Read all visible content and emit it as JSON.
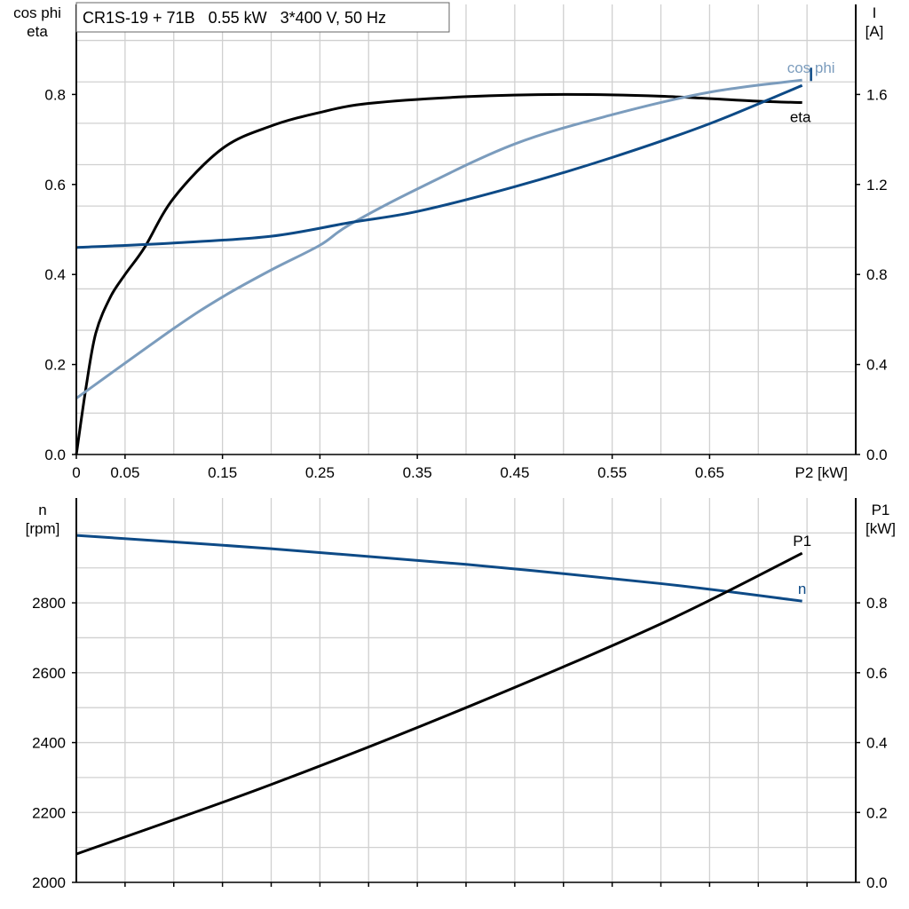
{
  "chart_data": [
    {
      "type": "line",
      "title": "CR1S-19 + 71B   0.55 kW   3*400 V, 50 Hz",
      "xlabel": "P2 [kW]",
      "ylabel_left": [
        "cos phi",
        "eta"
      ],
      "ylabel_right": [
        "I",
        "[A]"
      ],
      "xlim": [
        0,
        0.8
      ],
      "ylim_left": [
        0,
        1.0
      ],
      "ylim_right": [
        0,
        2.0
      ],
      "x_ticks": [
        "0",
        "0.05",
        "0.15",
        "0.25",
        "0.35",
        "0.45",
        "0.55",
        "0.65"
      ],
      "x_tick_values": [
        0,
        0.05,
        0.15,
        0.25,
        0.35,
        0.45,
        0.55,
        0.65
      ],
      "y_ticks_left": [
        "0.0",
        "0.2",
        "0.4",
        "0.6",
        "0.8"
      ],
      "y_ticks_right": [
        "0.0",
        "0.4",
        "0.8",
        "1.2",
        "1.6"
      ],
      "grid": true,
      "series": [
        {
          "name": "eta",
          "axis": "left",
          "color": "#000000",
          "x": [
            0,
            0.01,
            0.02,
            0.035,
            0.05,
            0.07,
            0.1,
            0.15,
            0.2,
            0.25,
            0.3,
            0.4,
            0.5,
            0.6,
            0.7,
            0.745
          ],
          "y": [
            0,
            0.15,
            0.27,
            0.35,
            0.4,
            0.46,
            0.57,
            0.68,
            0.73,
            0.76,
            0.78,
            0.795,
            0.8,
            0.796,
            0.785,
            0.782
          ]
        },
        {
          "name": "cos phi",
          "axis": "left",
          "color": "#7b9cbd",
          "x": [
            0,
            0.1,
            0.15,
            0.2,
            0.25,
            0.28,
            0.35,
            0.45,
            0.55,
            0.65,
            0.745
          ],
          "y": [
            0.125,
            0.28,
            0.35,
            0.41,
            0.465,
            0.51,
            0.59,
            0.69,
            0.755,
            0.805,
            0.832
          ]
        },
        {
          "name": "I",
          "axis": "right",
          "color": "#0d4a86",
          "x": [
            0,
            0.1,
            0.2,
            0.28,
            0.35,
            0.45,
            0.55,
            0.65,
            0.745
          ],
          "y": [
            0.92,
            0.94,
            0.97,
            1.03,
            1.08,
            1.19,
            1.32,
            1.47,
            1.64
          ]
        }
      ]
    },
    {
      "type": "line",
      "ylabel_left": [
        "n",
        "[rpm]"
      ],
      "ylabel_right": [
        "P1",
        "[kW]"
      ],
      "xlim": [
        0,
        0.8
      ],
      "ylim_left": [
        2000,
        3100
      ],
      "ylim_right": [
        0,
        1.1
      ],
      "y_ticks_left": [
        "2000",
        "2200",
        "2400",
        "2600",
        "2800"
      ],
      "y_ticks_right": [
        "0.0",
        "0.2",
        "0.4",
        "0.6",
        "0.8"
      ],
      "grid": true,
      "series": [
        {
          "name": "n",
          "axis": "left",
          "color": "#0d4a86",
          "x": [
            0,
            0.2,
            0.4,
            0.6,
            0.745
          ],
          "y": [
            2993,
            2955,
            2910,
            2855,
            2805
          ]
        },
        {
          "name": "P1",
          "axis": "right",
          "color": "#000000",
          "x": [
            0,
            0.2,
            0.4,
            0.6,
            0.745
          ],
          "y": [
            0.081,
            0.28,
            0.5,
            0.74,
            0.942
          ]
        }
      ]
    }
  ]
}
